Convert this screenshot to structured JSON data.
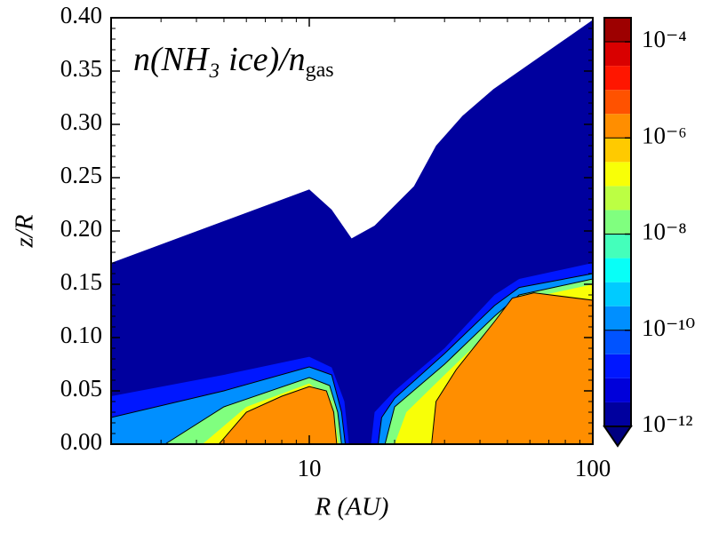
{
  "chart_data": {
    "type": "contourf",
    "title": [
      "n(NH₃ ice)/n",
      "gas"
    ],
    "xlabel": "R (AU)",
    "ylabel": "z/R",
    "xscale": "log",
    "xlim": [
      2,
      100
    ],
    "xticks": [
      10,
      100
    ],
    "ylim": [
      0,
      0.4
    ],
    "yticks": [
      {
        "value": 0,
        "label": "0.00"
      },
      {
        "value": 0.05,
        "label": "0.05"
      },
      {
        "value": 0.1,
        "label": "0.10"
      },
      {
        "value": 0.15,
        "label": "0.15"
      },
      {
        "value": 0.2,
        "label": "0.20"
      },
      {
        "value": 0.25,
        "label": "0.25"
      },
      {
        "value": 0.3,
        "label": "0.30"
      },
      {
        "value": 0.35,
        "label": "0.35"
      },
      {
        "value": 0.4,
        "label": "0.40"
      }
    ],
    "colormap": "jet",
    "colorbar_scale": "log",
    "clim": [
      1e-12,
      0.000316
    ],
    "colorbar_levels_per_decade": 2,
    "colorbar_ticks": [
      {
        "value": 1e-12,
        "label": "10⁻¹²"
      },
      {
        "value": 1e-10,
        "label": "10⁻¹⁰"
      },
      {
        "value": 1e-08,
        "label": "10⁻⁸"
      },
      {
        "value": 1e-06,
        "label": "10⁻⁶"
      },
      {
        "value": 0.0001,
        "label": "10⁻⁴"
      }
    ],
    "contours": [
      {
        "level": 1e-12,
        "x": [
          2,
          10,
          12,
          14.1,
          17,
          23.4,
          28,
          34.7,
          44.6,
          100,
          100,
          2
        ],
        "y": [
          0.17,
          0.239,
          0.22,
          0.193,
          0.205,
          0.242,
          0.28,
          0.308,
          0.333,
          0.398,
          0,
          0
        ]
      },
      {
        "level": 1e-11,
        "x": [
          2,
          2,
          5,
          10,
          12,
          13.3,
          13.8
        ],
        "y": [
          0,
          0.045,
          0.065,
          0.082,
          0.072,
          0.04,
          0
        ]
      },
      {
        "level": 1e-10,
        "x": [
          2,
          2,
          5,
          10,
          12,
          13,
          13.4
        ],
        "y": [
          0,
          0.025,
          0.05,
          0.0725,
          0.065,
          0.03,
          0
        ]
      },
      {
        "level": 1e-08,
        "x": [
          3.1,
          5,
          10,
          11.8,
          12.6,
          13
        ],
        "y": [
          0,
          0.035,
          0.0625,
          0.055,
          0.03,
          0
        ]
      },
      {
        "level": 1e-07,
        "x": [
          4.2,
          6,
          10,
          12,
          12.7
        ],
        "y": [
          0,
          0.035,
          0.057,
          0.04,
          0
        ]
      },
      {
        "level": 1e-06,
        "x": [
          4.8,
          6,
          8,
          10,
          11.5,
          12.2,
          12.5
        ],
        "y": [
          0,
          0.03,
          0.045,
          0.054,
          0.05,
          0.03,
          0
        ]
      },
      {
        "level": 1e-11,
        "x": [
          16.5,
          17,
          20,
          30,
          45,
          55,
          100,
          100
        ],
        "y": [
          0,
          0.03,
          0.05,
          0.09,
          0.14,
          0.155,
          0.17,
          0
        ]
      },
      {
        "level": 1e-10,
        "x": [
          17.5,
          18,
          20,
          30,
          45,
          55,
          100,
          100
        ],
        "y": [
          0,
          0.025,
          0.043,
          0.085,
          0.13,
          0.147,
          0.16,
          0
        ]
      },
      {
        "level": 1e-08,
        "x": [
          18.5,
          20,
          30,
          45,
          55,
          100,
          100
        ],
        "y": [
          0,
          0.035,
          0.075,
          0.12,
          0.14,
          0.155,
          0
        ]
      },
      {
        "level": 1e-07,
        "x": [
          20,
          22,
          30,
          45,
          55,
          100,
          100
        ],
        "y": [
          0,
          0.03,
          0.065,
          0.11,
          0.135,
          0.15,
          0
        ]
      },
      {
        "level": 1e-06,
        "x": [
          27,
          28,
          33,
          45,
          52,
          62,
          100,
          100
        ],
        "y": [
          0,
          0.04,
          0.07,
          0.115,
          0.137,
          0.142,
          0.135,
          0
        ]
      }
    ]
  }
}
